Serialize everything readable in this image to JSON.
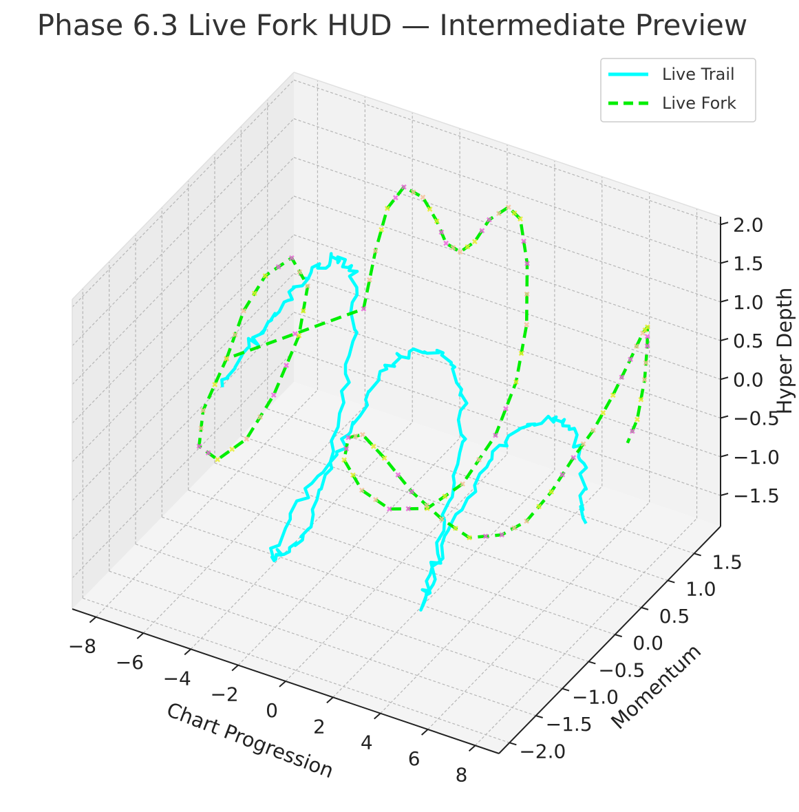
{
  "title": "Phase 6.3 Live Fork HUD — Intermediate Preview",
  "colors": {
    "live_trail": "#00ffff",
    "live_fork": "#00ee00",
    "marker_magenta": "#ee66dd",
    "marker_peach": "#f4c29a",
    "marker_yellow": "#e8ee30",
    "pane_back": "#f2f2f2",
    "pane_side": "#ebebeb",
    "pane_floor": "#f4f4f4",
    "grid": "#b5b5b5"
  },
  "chart_data": {
    "type": "line3d",
    "title": "Phase 6.3 Live Fork HUD — Intermediate Preview",
    "xlabel": "Chart Progression",
    "ylabel": "Momentum",
    "zlabel": "Hyper Depth",
    "xlim": [
      -9,
      9
    ],
    "ylim": [
      -2.2,
      2.0
    ],
    "zlim": [
      -1.9,
      2.1
    ],
    "x_ticks": [
      "−8",
      "−6",
      "−4",
      "−2",
      "0",
      "2",
      "4",
      "6",
      "8"
    ],
    "y_ticks": [
      "−2.0",
      "−1.5",
      "−1.0",
      "−0.5",
      "0.0",
      "0.5",
      "1.0",
      "1.5"
    ],
    "z_ticks": [
      "−1.5",
      "−1.0",
      "−0.5",
      "0.0",
      "0.5",
      "1.0",
      "1.5",
      "2.0"
    ],
    "grid": true,
    "legend_position": "top-right",
    "series": [
      {
        "name": "Live Trail",
        "style": "solid",
        "points": [
          [
            -8.0,
            0.2,
            -0.6
          ],
          [
            -7.5,
            0.25,
            -0.3
          ],
          [
            -7.0,
            0.3,
            0.0
          ],
          [
            -6.5,
            0.3,
            0.2
          ],
          [
            -6.0,
            0.32,
            0.45
          ],
          [
            -5.5,
            0.35,
            0.7
          ],
          [
            -5.0,
            0.38,
            0.95
          ],
          [
            -4.5,
            0.42,
            1.15
          ],
          [
            -4.0,
            0.45,
            1.3
          ],
          [
            -3.5,
            0.45,
            1.35
          ],
          [
            -3.0,
            0.42,
            1.3
          ],
          [
            -2.7,
            0.35,
            1.0
          ],
          [
            -2.5,
            0.2,
            0.5
          ],
          [
            -2.4,
            0.0,
            0.0
          ],
          [
            -2.3,
            -0.25,
            -0.5
          ],
          [
            -2.2,
            -0.5,
            -0.9
          ],
          [
            -2.3,
            -0.75,
            -1.2
          ],
          [
            -2.6,
            -0.9,
            -1.3
          ],
          [
            -3.0,
            -1.0,
            -1.4
          ],
          [
            -3.2,
            -1.05,
            -1.45
          ],
          [
            -2.8,
            -0.8,
            -1.0
          ],
          [
            -2.2,
            -0.55,
            -0.6
          ],
          [
            -1.6,
            -0.4,
            -0.3
          ],
          [
            -1.2,
            -0.3,
            0.0
          ],
          [
            -1.0,
            -0.1,
            0.3
          ],
          [
            -0.6,
            0.0,
            0.6
          ],
          [
            0.0,
            0.05,
            0.75
          ],
          [
            0.7,
            0.08,
            0.85
          ],
          [
            1.5,
            0.1,
            0.9
          ],
          [
            2.2,
            0.05,
            0.75
          ],
          [
            2.7,
            -0.05,
            0.45
          ],
          [
            3.0,
            -0.2,
            0.05
          ],
          [
            3.1,
            -0.45,
            -0.4
          ],
          [
            3.2,
            -0.7,
            -0.85
          ],
          [
            3.3,
            -0.95,
            -1.15
          ],
          [
            3.45,
            -1.15,
            -1.3
          ],
          [
            3.7,
            -1.0,
            -0.9
          ],
          [
            4.0,
            -0.85,
            -0.5
          ],
          [
            4.3,
            -0.6,
            -0.1
          ],
          [
            4.6,
            -0.35,
            0.2
          ],
          [
            5.0,
            -0.15,
            0.35
          ],
          [
            5.5,
            0.0,
            0.45
          ],
          [
            6.0,
            0.1,
            0.5
          ],
          [
            6.5,
            0.15,
            0.5
          ],
          [
            7.0,
            0.15,
            0.4
          ],
          [
            7.4,
            0.1,
            0.15
          ],
          [
            7.7,
            0.0,
            -0.2
          ],
          [
            8.0,
            -0.1,
            -0.5
          ]
        ]
      },
      {
        "name": "Live Fork",
        "style": "dashed",
        "points": [
          [
            -8.5,
            0.5,
            -0.5
          ],
          [
            -8.0,
            0.6,
            0.1
          ],
          [
            -7.2,
            0.65,
            0.6
          ],
          [
            -6.2,
            0.7,
            0.9
          ],
          [
            -5.3,
            0.6,
            0.7
          ],
          [
            -5.0,
            0.3,
            0.3
          ],
          [
            -5.4,
            0.0,
            -0.3
          ],
          [
            -6.1,
            -0.2,
            -0.8
          ],
          [
            -7.1,
            -0.3,
            -1.1
          ],
          [
            -8.1,
            -0.2,
            -1.1
          ],
          [
            -8.6,
            0.1,
            -0.9
          ],
          [
            -8.5,
            0.5,
            -0.5
          ],
          [
            -4.5,
            1.3,
            0.0
          ],
          [
            -4.0,
            1.3,
            0.8
          ],
          [
            -3.5,
            1.3,
            1.4
          ],
          [
            -2.8,
            1.3,
            1.75
          ],
          [
            -2.0,
            1.3,
            1.7
          ],
          [
            -1.3,
            1.25,
            1.5
          ],
          [
            -0.8,
            1.2,
            1.3
          ],
          [
            -0.2,
            1.2,
            1.25
          ],
          [
            0.3,
            1.25,
            1.4
          ],
          [
            0.8,
            1.3,
            1.7
          ],
          [
            1.5,
            1.35,
            1.9
          ],
          [
            2.0,
            1.35,
            1.8
          ],
          [
            2.4,
            1.3,
            1.3
          ],
          [
            2.6,
            1.2,
            0.6
          ],
          [
            2.6,
            1.0,
            0.0
          ],
          [
            2.4,
            0.7,
            -0.5
          ],
          [
            1.9,
            0.3,
            -0.9
          ],
          [
            1.3,
            -0.1,
            -1.0
          ],
          [
            0.6,
            -0.5,
            -0.8
          ],
          [
            0.1,
            -0.8,
            -0.4
          ],
          [
            -0.2,
            -1.0,
            0.1
          ],
          [
            0.2,
            -1.1,
            0.5
          ],
          [
            0.8,
            -1.1,
            0.6
          ],
          [
            1.5,
            -1.0,
            0.3
          ],
          [
            2.2,
            -0.8,
            -0.2
          ],
          [
            2.8,
            -0.5,
            -0.7
          ],
          [
            3.3,
            -0.2,
            -1.1
          ],
          [
            4.0,
            0.1,
            -1.2
          ],
          [
            4.6,
            0.3,
            -1.1
          ],
          [
            5.2,
            0.5,
            -0.8
          ],
          [
            5.8,
            0.65,
            -0.4
          ],
          [
            6.3,
            0.8,
            -0.1
          ],
          [
            6.8,
            0.95,
            0.3
          ],
          [
            7.2,
            1.1,
            0.7
          ],
          [
            7.5,
            1.2,
            1.0
          ],
          [
            7.7,
            1.2,
            1.1
          ],
          [
            7.8,
            1.15,
            0.9
          ],
          [
            7.8,
            1.1,
            0.5
          ],
          [
            7.6,
            1.05,
            0.0
          ],
          [
            7.3,
            1.0,
            -0.3
          ]
        ]
      }
    ]
  },
  "legend": {
    "items": [
      {
        "label": "Live Trail"
      },
      {
        "label": "Live Fork"
      }
    ]
  }
}
